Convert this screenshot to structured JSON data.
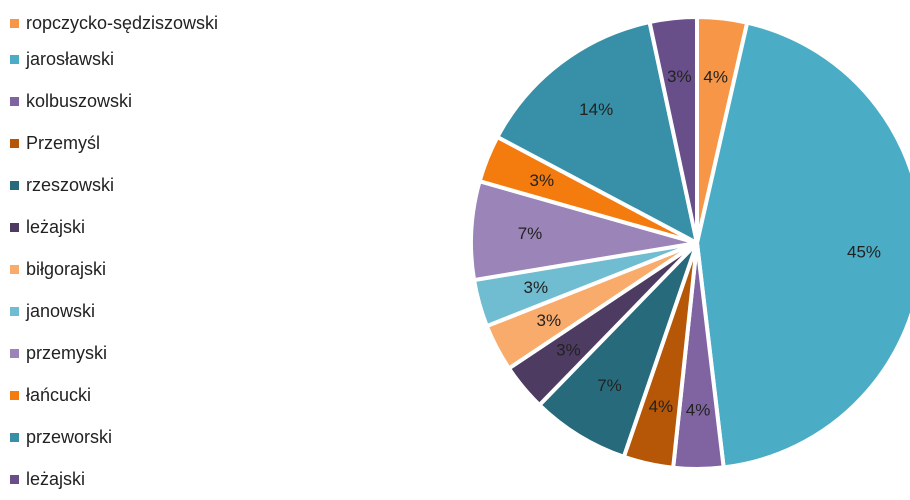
{
  "chart_data": {
    "type": "pie",
    "legend_position": "left",
    "slices": [
      {
        "name": "ropczycko-sędziszowski",
        "label": "4%",
        "value": 3.6,
        "color": "#F79646"
      },
      {
        "name": "jarosławski",
        "label": "45%",
        "value": 45.0,
        "color": "#4BACC6"
      },
      {
        "name": "kolbuszowski",
        "label": "4%",
        "value": 3.6,
        "color": "#8064A2"
      },
      {
        "name": "Przemyśl",
        "label": "4%",
        "value": 3.6,
        "color": "#B65708"
      },
      {
        "name": "rzeszowski",
        "label": "7%",
        "value": 7.1,
        "color": "#276A7C"
      },
      {
        "name": "leżajski",
        "label": "3%",
        "value": 3.4,
        "color": "#4D3B62"
      },
      {
        "name": "biłgorajski",
        "label": "3%",
        "value": 3.4,
        "color": "#F9AB6B"
      },
      {
        "name": "janowski",
        "label": "3%",
        "value": 3.4,
        "color": "#70BCD1"
      },
      {
        "name": "przemyski",
        "label": "7%",
        "value": 7.1,
        "color": "#9B85B8"
      },
      {
        "name": "łańcucki",
        "label": "3%",
        "value": 3.4,
        "color": "#F47B0D"
      },
      {
        "name": "przeworski",
        "label": "14%",
        "value": 14.0,
        "color": "#3790A8"
      },
      {
        "name": "leżajski",
        "label": "3%",
        "value": 3.4,
        "color": "#684F8A"
      }
    ]
  }
}
